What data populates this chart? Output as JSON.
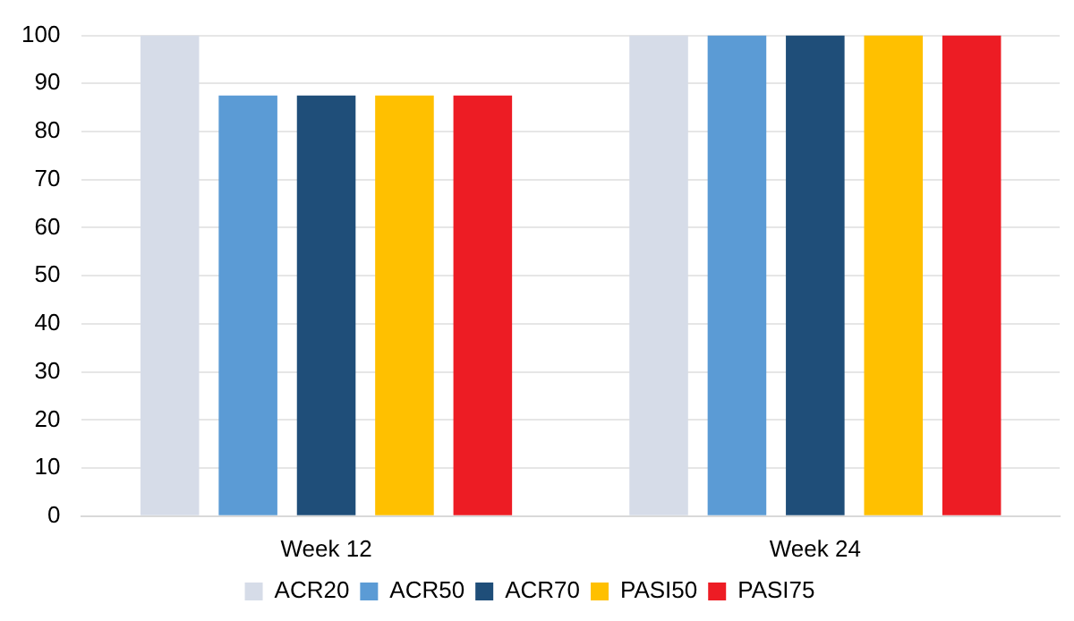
{
  "chart_data": {
    "type": "bar",
    "categories": [
      "Week 12",
      "Week 24"
    ],
    "series": [
      {
        "name": "ACR20",
        "color": "#d6dce8",
        "values": [
          100,
          100
        ]
      },
      {
        "name": "ACR50",
        "color": "#5b9bd5",
        "values": [
          87.5,
          100
        ]
      },
      {
        "name": "ACR70",
        "color": "#1f4e79",
        "values": [
          87.5,
          100
        ]
      },
      {
        "name": "PASI50",
        "color": "#ffc000",
        "values": [
          87.5,
          100
        ]
      },
      {
        "name": "PASI75",
        "color": "#ed1c24",
        "values": [
          87.5,
          100
        ]
      }
    ],
    "ylim": [
      0,
      100
    ],
    "yticks": [
      0,
      10,
      20,
      30,
      40,
      50,
      60,
      70,
      80,
      90,
      100
    ],
    "grid": "y",
    "legend": "bottom"
  }
}
